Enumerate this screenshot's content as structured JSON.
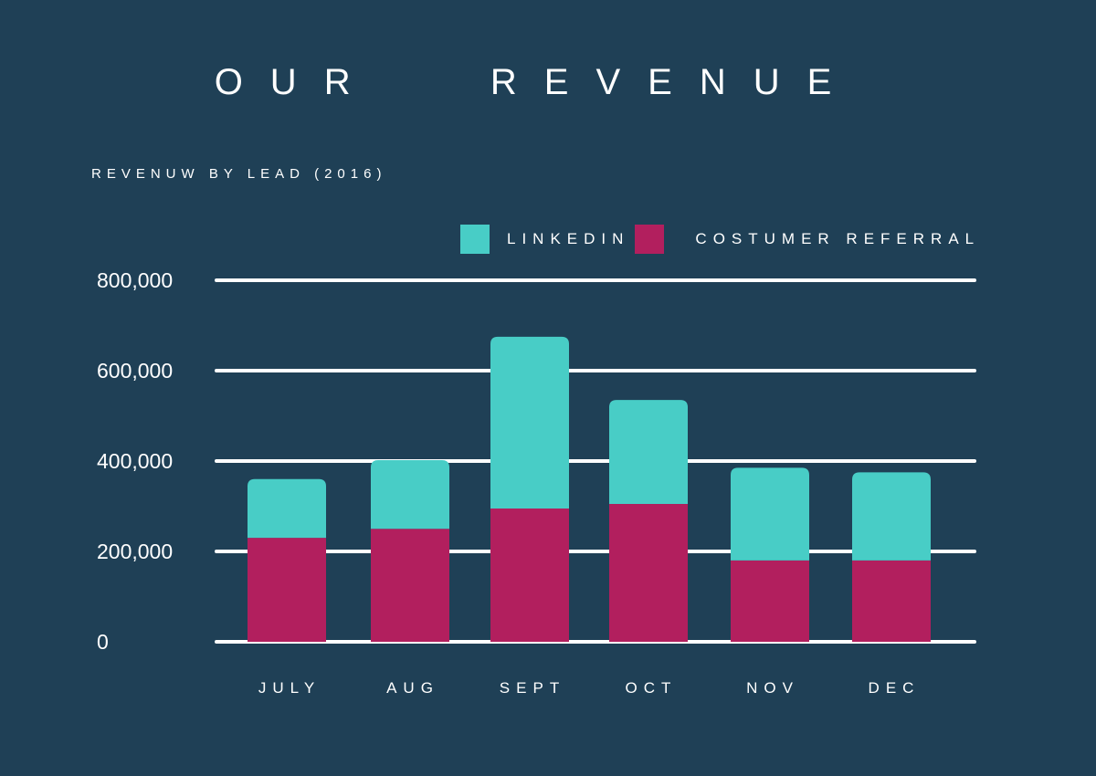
{
  "colors": {
    "background": "#1f4056",
    "linkedin": "#48cdc6",
    "referral": "#b21f5e",
    "gridline": "#ffffff",
    "text": "#ffffff"
  },
  "header": {
    "title": "OUR   REVENUE",
    "subtitle": "REVENUW BY LEAD (2016)"
  },
  "legend": {
    "items": [
      {
        "label": "LINKEDIN",
        "color": "#48cdc6"
      },
      {
        "label": "COSTUMER REFERRAL",
        "color": "#b21f5e"
      }
    ]
  },
  "chart_data": {
    "type": "bar",
    "stacked": true,
    "title": "OUR REVENUE",
    "subtitle": "REVENUW BY LEAD (2016)",
    "xlabel": "",
    "ylabel": "",
    "categories": [
      "JULY",
      "AUG",
      "SEPT",
      "OCT",
      "NOV",
      "DEC"
    ],
    "series": [
      {
        "name": "COSTUMER REFERRAL",
        "color": "#b21f5e",
        "values": [
          230000,
          250000,
          295000,
          305000,
          180000,
          180000
        ]
      },
      {
        "name": "LINKEDIN",
        "color": "#48cdc6",
        "values": [
          130000,
          152000,
          380000,
          230000,
          205000,
          195000
        ]
      }
    ],
    "ylim": [
      0,
      800000
    ],
    "yticks": [
      0,
      200000,
      400000,
      600000,
      800000
    ],
    "ytick_labels": [
      "0",
      "200,000",
      "400,000",
      "600,000",
      "800,000"
    ],
    "grid": true,
    "legend_position": "top-right"
  }
}
